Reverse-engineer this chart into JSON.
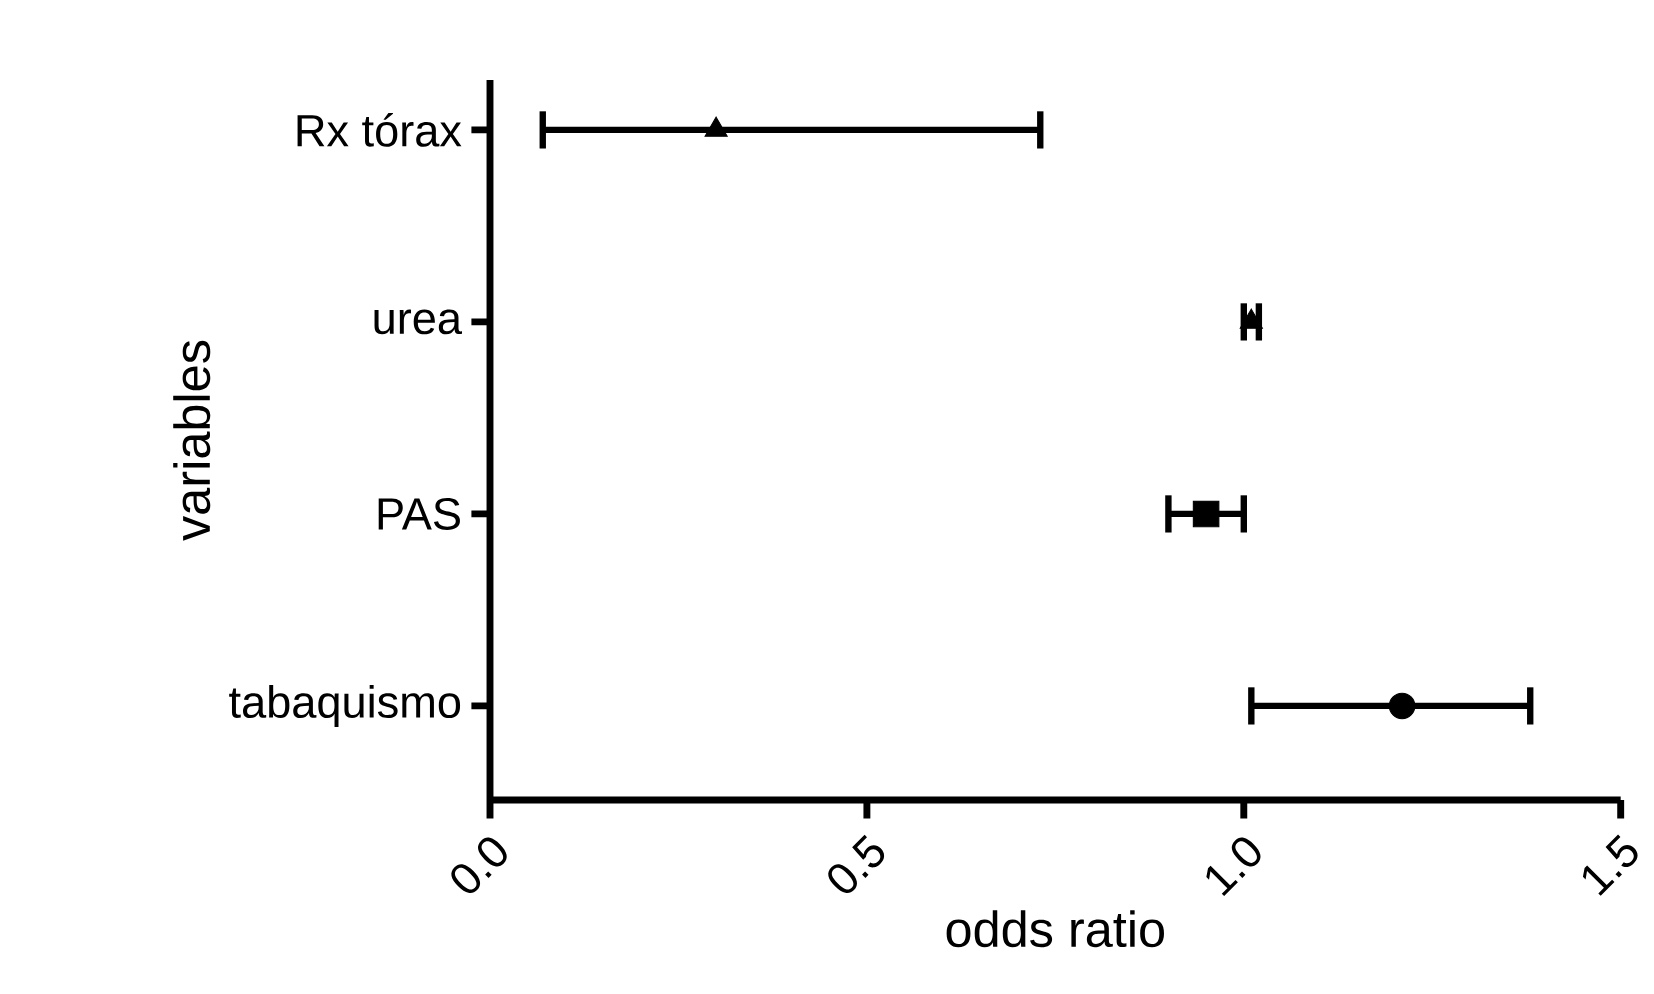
{
  "chart_data": {
    "type": "scatter",
    "orientation": "horizontal",
    "xlabel": "odds ratio",
    "ylabel": "variables",
    "categories": [
      "Rx tórax",
      "urea",
      "PAS",
      "tabaquismo"
    ],
    "xlim": [
      0,
      1.5
    ],
    "xticks": [
      {
        "value": 0,
        "label": "0.0"
      },
      {
        "value": 0.5,
        "label": "0.5"
      },
      {
        "value": 1,
        "label": "1.0"
      },
      {
        "value": 1.5,
        "label": "1.5"
      }
    ],
    "grid": false,
    "series": [
      {
        "color": "#000000",
        "marker": "triangle",
        "values": [
          0.3,
          null,
          null,
          null
        ],
        "errors": [
          [
            0.07,
            0.73
          ],
          null,
          null,
          null
        ]
      },
      {
        "color": "#000000",
        "marker": "triangle",
        "values": [
          null,
          1.01,
          null,
          null
        ],
        "errors": [
          null,
          [
            1.0,
            1.02
          ],
          null,
          null
        ]
      },
      {
        "color": "#000000",
        "marker": "square",
        "values": [
          null,
          null,
          0.95,
          null
        ],
        "errors": [
          null,
          null,
          [
            0.9,
            1.0
          ],
          null
        ]
      },
      {
        "color": "#000000",
        "marker": "circle",
        "values": [
          null,
          null,
          null,
          1.21
        ],
        "errors": [
          null,
          null,
          null,
          [
            1.01,
            1.38
          ]
        ]
      }
    ]
  }
}
